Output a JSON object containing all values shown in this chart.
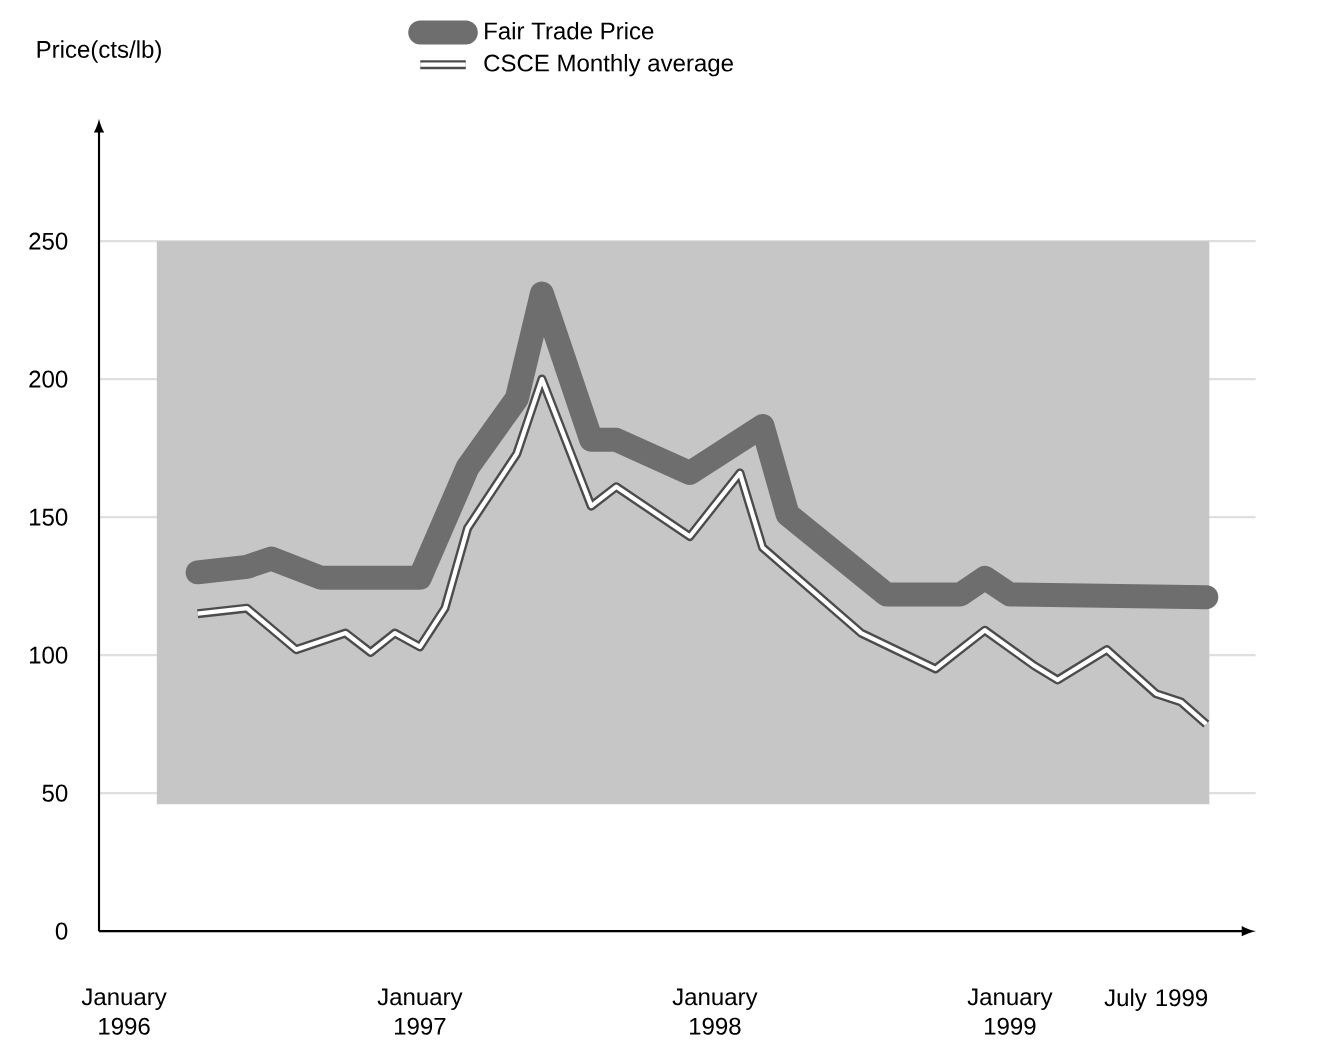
{
  "chart_data": {
    "type": "line",
    "ylabel": "Price(cts/lb)",
    "legend": "top",
    "xlim": [
      "1995-12",
      "1999-11"
    ],
    "ylim": [
      0,
      290
    ],
    "bands": [
      {
        "axis": "y",
        "from": 46,
        "to": 250,
        "color": "#c6c6c6"
      }
    ],
    "xticks": [
      {
        "value": "1996-01",
        "label": "January 1996"
      },
      {
        "value": "1997-01",
        "label": "January 1997"
      },
      {
        "value": "1998-01",
        "label": "January 1998"
      },
      {
        "value": "1999-01",
        "label": "January 1999"
      },
      {
        "value": "1999-07",
        "label": "July 1999"
      }
    ],
    "yticks": [
      0,
      50,
      100,
      150,
      200,
      250
    ],
    "grid": "y",
    "series": [
      {
        "name": "Fair Trade Price",
        "color": "#6e6e6e",
        "x": [
          "1996-04",
          "1996-06",
          "1996-07",
          "1996-09",
          "1997-01",
          "1997-03",
          "1997-05",
          "1997-06",
          "1997-08",
          "1997-09",
          "1997-12",
          "1998-03",
          "1998-04",
          "1998-08",
          "1998-11",
          "1998-12",
          "1999-01",
          "1999-09"
        ],
        "values": [
          130,
          132,
          135,
          128,
          128,
          168,
          193,
          231,
          178,
          178,
          166,
          183,
          151,
          122,
          122,
          128,
          122,
          121
        ]
      },
      {
        "name": "CSCE Monthly average",
        "color": "#ffffff",
        "x": [
          "1996-04",
          "1996-06",
          "1996-08",
          "1996-10",
          "1996-11",
          "1996-12",
          "1997-01",
          "1997-02",
          "1997-03",
          "1997-05",
          "1997-06",
          "1997-08",
          "1997-09",
          "1997-12",
          "1998-02",
          "1998-03",
          "1998-07",
          "1998-10",
          "1998-12",
          "1999-02",
          "1999-03",
          "1999-05",
          "1999-07",
          "1999-08",
          "1999-09"
        ],
        "values": [
          115,
          117,
          102,
          108,
          101,
          108,
          103,
          117,
          146,
          173,
          200,
          154,
          161,
          143,
          166,
          139,
          108,
          95,
          109,
          96,
          91,
          102,
          86,
          83,
          75
        ]
      }
    ]
  }
}
